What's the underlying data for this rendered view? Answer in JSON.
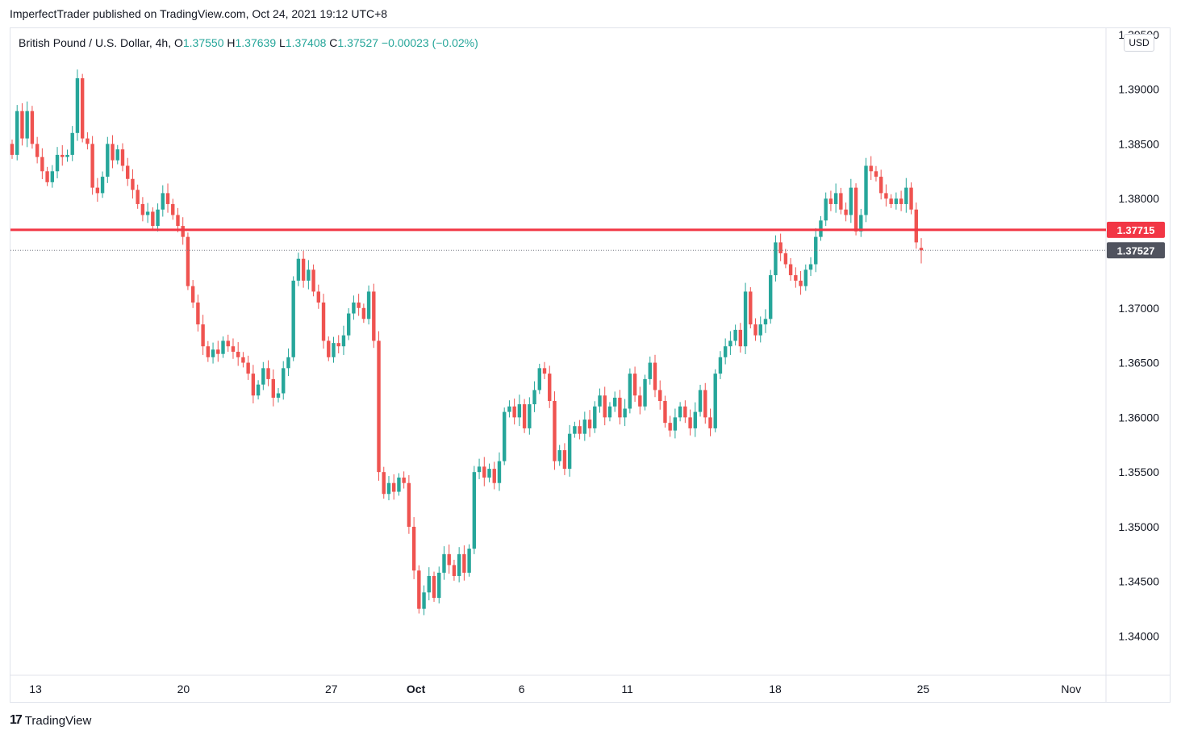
{
  "header": {
    "publisher_line": "ImperfectTrader published on TradingView.com, Oct 24, 2021 19:12 UTC+8"
  },
  "legend": {
    "symbol": "British Pound / U.S. Dollar, 4h,",
    "o_label": "O",
    "o_value": "1.37550",
    "h_label": "H",
    "h_value": "1.37639",
    "l_label": "L",
    "l_value": "1.37408",
    "c_label": "C",
    "c_value": "1.37527",
    "change": "−0.00023 (−0.02%)"
  },
  "currency_button": "USD",
  "footer": {
    "brand": "TradingView",
    "logo": "17"
  },
  "colors": {
    "up": "#26a69a",
    "down": "#ef5350",
    "level_line": "#f23645",
    "last_price_label": "#50535e"
  },
  "chart_data": {
    "type": "candlestick",
    "timeframe": "4h",
    "ylim": [
      1.3365,
      1.3955
    ],
    "y_ticks": [
      "1.39500",
      "1.39000",
      "1.38500",
      "1.38000",
      "1.37000",
      "1.36500",
      "1.36000",
      "1.35500",
      "1.35000",
      "1.34500",
      "1.34000"
    ],
    "x_tick_labels": [
      {
        "label": "13",
        "day": 13,
        "bold": false
      },
      {
        "label": "20",
        "day": 20,
        "bold": false
      },
      {
        "label": "27",
        "day": 27,
        "bold": false
      },
      {
        "label": "Oct",
        "day": 31,
        "bold": true
      },
      {
        "label": "6",
        "day": 36,
        "bold": false
      },
      {
        "label": "11",
        "day": 41,
        "bold": false
      },
      {
        "label": "18",
        "day": 48,
        "bold": false
      },
      {
        "label": "25",
        "day": 55,
        "bold": false
      },
      {
        "label": "Nov",
        "day": 62,
        "bold": false
      }
    ],
    "horizontal_line": {
      "value": 1.37715,
      "label": "1.37715"
    },
    "last_price": {
      "value": 1.37527,
      "label": "1.37527"
    },
    "closes": [
      1.384,
      1.388,
      1.3855,
      1.388,
      1.385,
      1.3838,
      1.3825,
      1.3815,
      1.3825,
      1.384,
      1.3838,
      1.384,
      1.386,
      1.391,
      1.3855,
      1.385,
      1.381,
      1.3805,
      1.382,
      1.385,
      1.3835,
      1.3845,
      1.383,
      1.3818,
      1.3808,
      1.3795,
      1.3785,
      1.3788,
      1.3775,
      1.379,
      1.3805,
      1.3795,
      1.3785,
      1.3775,
      1.3765,
      1.372,
      1.3705,
      1.3685,
      1.3665,
      1.3655,
      1.3662,
      1.3658,
      1.367,
      1.3665,
      1.366,
      1.3655,
      1.365,
      1.364,
      1.362,
      1.363,
      1.3645,
      1.3635,
      1.3618,
      1.3622,
      1.3645,
      1.3655,
      1.3725,
      1.3745,
      1.3725,
      1.3735,
      1.3715,
      1.3705,
      1.367,
      1.3655,
      1.3668,
      1.3665,
      1.3675,
      1.3695,
      1.3705,
      1.37,
      1.369,
      1.3715,
      1.367,
      1.355,
      1.353,
      1.354,
      1.3532,
      1.3545,
      1.354,
      1.35,
      1.346,
      1.3425,
      1.344,
      1.3455,
      1.3435,
      1.3458,
      1.3475,
      1.3465,
      1.3455,
      1.3475,
      1.3458,
      1.348,
      1.355,
      1.3555,
      1.3545,
      1.3553,
      1.354,
      1.356,
      1.3605,
      1.361,
      1.36,
      1.3612,
      1.359,
      1.3612,
      1.3625,
      1.3645,
      1.364,
      1.3615,
      1.356,
      1.357,
      1.3553,
      1.3585,
      1.3592,
      1.3585,
      1.3598,
      1.359,
      1.361,
      1.362,
      1.36,
      1.361,
      1.3618,
      1.36,
      1.3608,
      1.364,
      1.362,
      1.361,
      1.3635,
      1.365,
      1.3625,
      1.3615,
      1.3595,
      1.3588,
      1.36,
      1.361,
      1.36,
      1.359,
      1.3605,
      1.3625,
      1.36,
      1.359,
      1.364,
      1.3655,
      1.3665,
      1.367,
      1.368,
      1.3665,
      1.3715,
      1.3685,
      1.3675,
      1.3685,
      1.369,
      1.373,
      1.376,
      1.375,
      1.374,
      1.373,
      1.3725,
      1.372,
      1.3735,
      1.374,
      1.3765,
      1.378,
      1.38,
      1.3795,
      1.3805,
      1.379,
      1.3785,
      1.381,
      1.377,
      1.3785,
      1.383,
      1.3825,
      1.382,
      1.3805,
      1.38,
      1.3795,
      1.38,
      1.3795,
      1.381,
      1.379,
      1.376,
      1.3752
    ],
    "last_candle": {
      "open": 1.3755,
      "high": 1.37639,
      "low": 1.37408,
      "close": 1.37527
    }
  }
}
